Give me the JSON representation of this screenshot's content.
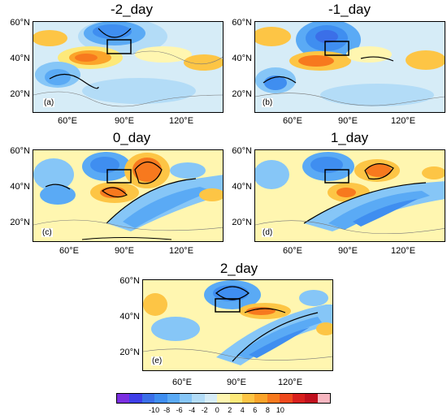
{
  "panels": [
    {
      "title": "-2_day",
      "label": "(a)",
      "lat_labels": [
        "60°N",
        "40°N",
        "20°N"
      ],
      "lon_labels": [
        "60°E",
        "90°E",
        "120°E"
      ]
    },
    {
      "title": "-1_day",
      "label": "(b)",
      "lat_labels": [
        "60°N",
        "40°N",
        "20°N"
      ],
      "lon_labels": [
        "60°E",
        "90°E",
        "120°E"
      ]
    },
    {
      "title": "0_day",
      "label": "(c)",
      "lat_labels": [
        "60°N",
        "40°N",
        "20°N"
      ],
      "lon_labels": [
        "60°E",
        "90°E",
        "120°E"
      ]
    },
    {
      "title": "1_day",
      "label": "(d)",
      "lat_labels": [
        "60°N",
        "40°N",
        "20°N"
      ],
      "lon_labels": [
        "60°E",
        "90°E",
        "120°E"
      ]
    },
    {
      "title": "2_day",
      "label": "(e)",
      "lat_labels": [
        "60°N",
        "40°N",
        "20°N"
      ],
      "lon_labels": [
        "60°E",
        "90°E",
        "120°E"
      ]
    }
  ],
  "colorbar": {
    "ticks": [
      "-10",
      "-8",
      "-6",
      "-4",
      "-2",
      "0",
      "2",
      "4",
      "6",
      "8",
      "10"
    ],
    "colors": [
      "#7b2fe0",
      "#3f3fe8",
      "#3b6fe8",
      "#3f8ef0",
      "#5aaaf5",
      "#86c6f7",
      "#b3dcf7",
      "#d6ecf7",
      "#fff6b0",
      "#fde97a",
      "#fdc545",
      "#fba42a",
      "#f7791e",
      "#ee4a1e",
      "#d8201e",
      "#c0101e",
      "#f7b6c0"
    ]
  }
}
